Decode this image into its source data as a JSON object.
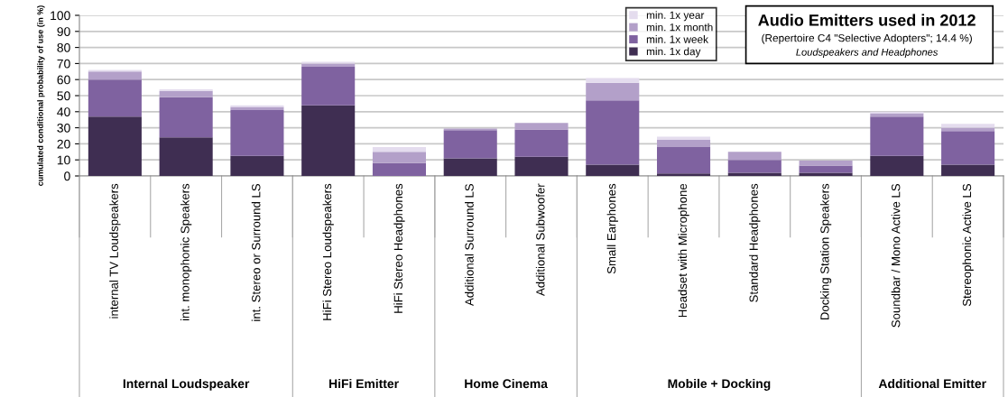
{
  "chart_data": {
    "type": "bar",
    "stacked": true,
    "title": "Audio Emitters used in 2012",
    "subtitle": "(Repertoire C4 \"Selective Adopters\"; 14.4 %)",
    "ylabel": "cumulated conditional probability of use (in %)",
    "categories": [
      "internal TV Loudspeakers",
      "int. monophonic Speakers",
      "int. Stereo or Surround LS",
      "HiFi Stereo Loudspeakers",
      "HiFi Stereo Headphones",
      "Additional Surround LS",
      "Additional Subwoofer",
      "Small Earphones",
      "Headset with Microphone",
      "Standard Headphones",
      "Docking Station Speakers",
      "Soundbar / Mono Active LS",
      "Stereophonic Active LS"
    ],
    "series": [
      {
        "name": "min. 1x day",
        "color": "#3f2e52",
        "values": [
          37,
          24,
          12.5,
          44,
          0,
          11,
          12,
          7,
          1.5,
          2,
          2,
          12.5,
          7
        ]
      },
      {
        "name": "min. 1x week",
        "color": "#7f62a0",
        "values": [
          23,
          25,
          28.5,
          24,
          8,
          17.5,
          17,
          40,
          16.5,
          8,
          4.5,
          24.5,
          21
        ]
      },
      {
        "name": "min. 1x month",
        "color": "#b3a0c9",
        "values": [
          5,
          4,
          2,
          2,
          7,
          1,
          4,
          11,
          4.5,
          5,
          3,
          2,
          2
        ]
      },
      {
        "name": "min. 1x year",
        "color": "#e4dcee",
        "values": [
          1,
          1,
          1,
          1,
          3,
          0,
          0,
          3,
          2,
          0,
          0,
          1,
          2.5
        ]
      }
    ],
    "ylim": [
      0,
      100
    ],
    "yticks": [
      0,
      10,
      20,
      30,
      40,
      50,
      60,
      70,
      80,
      90,
      100
    ],
    "grid": "y",
    "legend": "top right",
    "annotations": [
      "Loudspeakers and Headphones",
      "Internal Loudspeaker",
      "HiFi Emitter",
      "Home Cinema",
      "Mobile + Docking",
      "Additional Emitter"
    ]
  }
}
